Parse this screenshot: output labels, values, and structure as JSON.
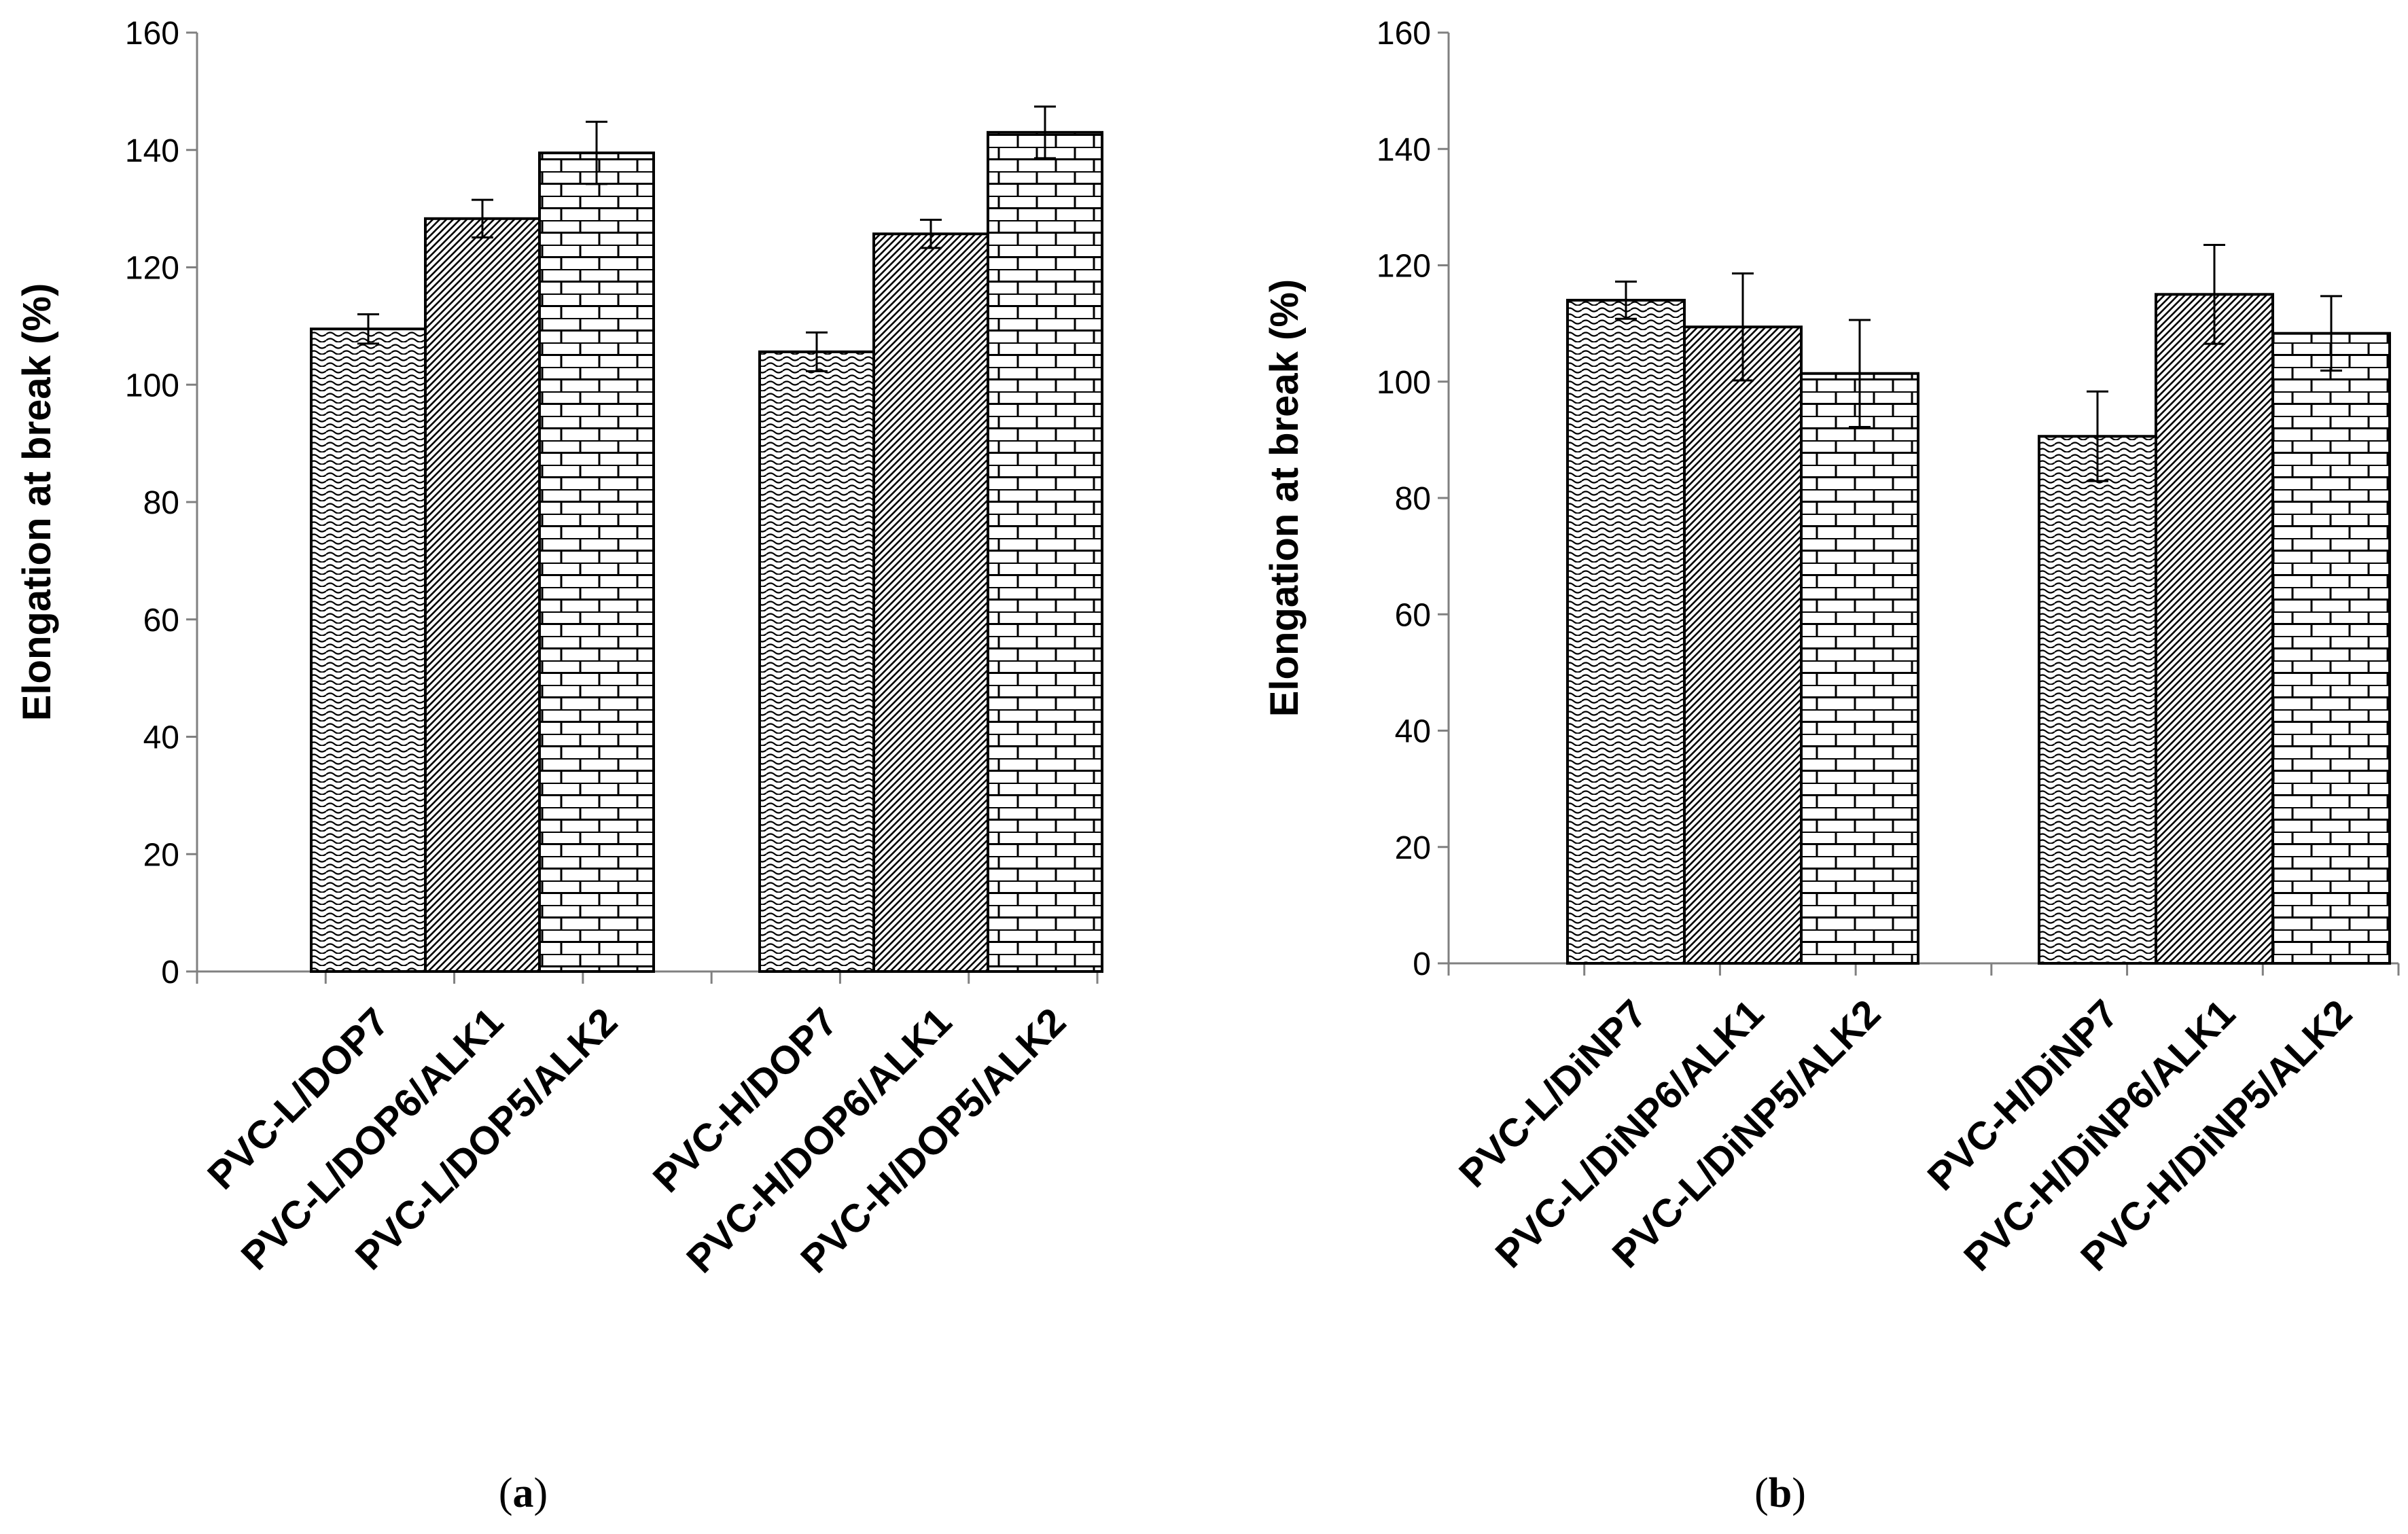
{
  "chart_data": [
    {
      "type": "bar",
      "panel_label": "a",
      "ylabel": "Elongation at break (%)",
      "ylim": [
        0,
        160
      ],
      "yticks": [
        0,
        20,
        40,
        60,
        80,
        100,
        120,
        140,
        160
      ],
      "groups": [
        {
          "bars": [
            {
              "category": "PVC-L/DOP7",
              "value": 109.5,
              "error": 2.5,
              "pattern": "wave"
            },
            {
              "category": "PVC-L/DOP6/ALK1",
              "value": 128.3,
              "error": 3.2,
              "pattern": "diagonal"
            },
            {
              "category": "PVC-L/DOP5/ALK2",
              "value": 139.5,
              "error": 5.3,
              "pattern": "brick"
            }
          ]
        },
        {
          "bars": [
            {
              "category": "PVC-H/DOP7",
              "value": 105.6,
              "error": 3.3,
              "pattern": "wave"
            },
            {
              "category": "PVC-H/DOP6/ALK1",
              "value": 125.7,
              "error": 2.4,
              "pattern": "diagonal"
            },
            {
              "category": "PVC-H/DOP5/ALK2",
              "value": 143.0,
              "error": 4.4,
              "pattern": "brick"
            }
          ]
        }
      ]
    },
    {
      "type": "bar",
      "panel_label": "b",
      "ylabel": "Elongation at break (%)",
      "ylim": [
        0,
        160
      ],
      "yticks": [
        0,
        20,
        40,
        60,
        80,
        100,
        120,
        140,
        160
      ],
      "groups": [
        {
          "bars": [
            {
              "category": "PVC-L/DiNP7",
              "value": 114.0,
              "error": 3.2,
              "pattern": "wave"
            },
            {
              "category": "PVC-L/DiNP6/ALK1",
              "value": 109.4,
              "error": 9.2,
              "pattern": "diagonal"
            },
            {
              "category": "PVC-L/DiNP5/ALK2",
              "value": 101.4,
              "error": 9.2,
              "pattern": "brick"
            }
          ]
        },
        {
          "bars": [
            {
              "category": "PVC-H/DiNP7",
              "value": 90.6,
              "error": 7.7,
              "pattern": "wave"
            },
            {
              "category": "PVC-H/DiNP6/ALK1",
              "value": 115.0,
              "error": 8.5,
              "pattern": "diagonal"
            },
            {
              "category": "PVC-H/DiNP5/ALK2",
              "value": 108.3,
              "error": 6.4,
              "pattern": "brick"
            }
          ]
        }
      ]
    }
  ]
}
